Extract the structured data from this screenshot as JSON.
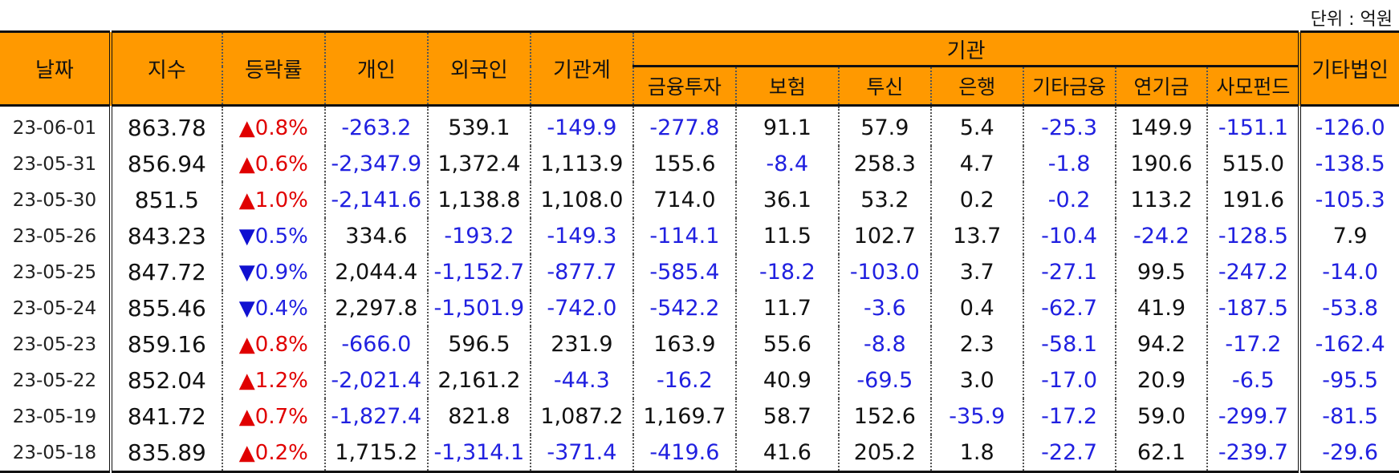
{
  "unit_label": "단위 : 억원",
  "headers": {
    "date": "날짜",
    "index": "지수",
    "change": "등락률",
    "individual": "개인",
    "foreign": "외국인",
    "inst_total": "기관계",
    "inst_group": "기관",
    "inst_sub": [
      "금융투자",
      "보험",
      "투신",
      "은행",
      "기타금융",
      "연기금",
      "사모펀드"
    ],
    "other_corp": "기타법인"
  },
  "rows": [
    {
      "date": "23-06-01",
      "index": "863.78",
      "dir": "up",
      "change": "0.8%",
      "vals": [
        "-263.2",
        "539.1",
        "-149.9",
        "-277.8",
        "91.1",
        "57.9",
        "5.4",
        "-25.3",
        "149.9",
        "-151.1",
        "-126.0"
      ]
    },
    {
      "date": "23-05-31",
      "index": "856.94",
      "dir": "up",
      "change": "0.6%",
      "vals": [
        "-2,347.9",
        "1,372.4",
        "1,113.9",
        "155.6",
        "-8.4",
        "258.3",
        "4.7",
        "-1.8",
        "190.6",
        "515.0",
        "-138.5"
      ]
    },
    {
      "date": "23-05-30",
      "index": "851.5",
      "dir": "up",
      "change": "1.0%",
      "vals": [
        "-2,141.6",
        "1,138.8",
        "1,108.0",
        "714.0",
        "36.1",
        "53.2",
        "0.2",
        "-0.2",
        "113.2",
        "191.6",
        "-105.3"
      ]
    },
    {
      "date": "23-05-26",
      "index": "843.23",
      "dir": "down",
      "change": "0.5%",
      "vals": [
        "334.6",
        "-193.2",
        "-149.3",
        "-114.1",
        "11.5",
        "102.7",
        "13.7",
        "-10.4",
        "-24.2",
        "-128.5",
        "7.9"
      ]
    },
    {
      "date": "23-05-25",
      "index": "847.72",
      "dir": "down",
      "change": "0.9%",
      "vals": [
        "2,044.4",
        "-1,152.7",
        "-877.7",
        "-585.4",
        "-18.2",
        "-103.0",
        "3.7",
        "-27.1",
        "99.5",
        "-247.2",
        "-14.0"
      ]
    },
    {
      "date": "23-05-24",
      "index": "855.46",
      "dir": "down",
      "change": "0.4%",
      "vals": [
        "2,297.8",
        "-1,501.9",
        "-742.0",
        "-542.2",
        "11.7",
        "-3.6",
        "0.4",
        "-62.7",
        "41.9",
        "-187.5",
        "-53.8"
      ]
    },
    {
      "date": "23-05-23",
      "index": "859.16",
      "dir": "up",
      "change": "0.8%",
      "vals": [
        "-666.0",
        "596.5",
        "231.9",
        "163.9",
        "55.6",
        "-8.8",
        "2.3",
        "-58.1",
        "94.2",
        "-17.2",
        "-162.4"
      ]
    },
    {
      "date": "23-05-22",
      "index": "852.04",
      "dir": "up",
      "change": "1.2%",
      "vals": [
        "-2,021.4",
        "2,161.2",
        "-44.3",
        "-16.2",
        "40.9",
        "-69.5",
        "3.0",
        "-17.0",
        "20.9",
        "-6.5",
        "-95.5"
      ]
    },
    {
      "date": "23-05-19",
      "index": "841.72",
      "dir": "up",
      "change": "0.7%",
      "vals": [
        "-1,827.4",
        "821.8",
        "1,087.2",
        "1,169.7",
        "58.7",
        "152.6",
        "-35.9",
        "-17.2",
        "59.0",
        "-299.7",
        "-81.5"
      ]
    },
    {
      "date": "23-05-18",
      "index": "835.89",
      "dir": "up",
      "change": "0.2%",
      "vals": [
        "1,715.2",
        "-1,314.1",
        "-371.4",
        "-419.6",
        "41.6",
        "205.2",
        "1.8",
        "-22.7",
        "62.1",
        "-239.7",
        "-29.6"
      ]
    }
  ],
  "colors": {
    "header_bg": "#ff9900",
    "up": "#e00000",
    "down": "#2020e0"
  },
  "icons": {
    "up": "triangle-up-icon",
    "down": "triangle-down-icon"
  }
}
